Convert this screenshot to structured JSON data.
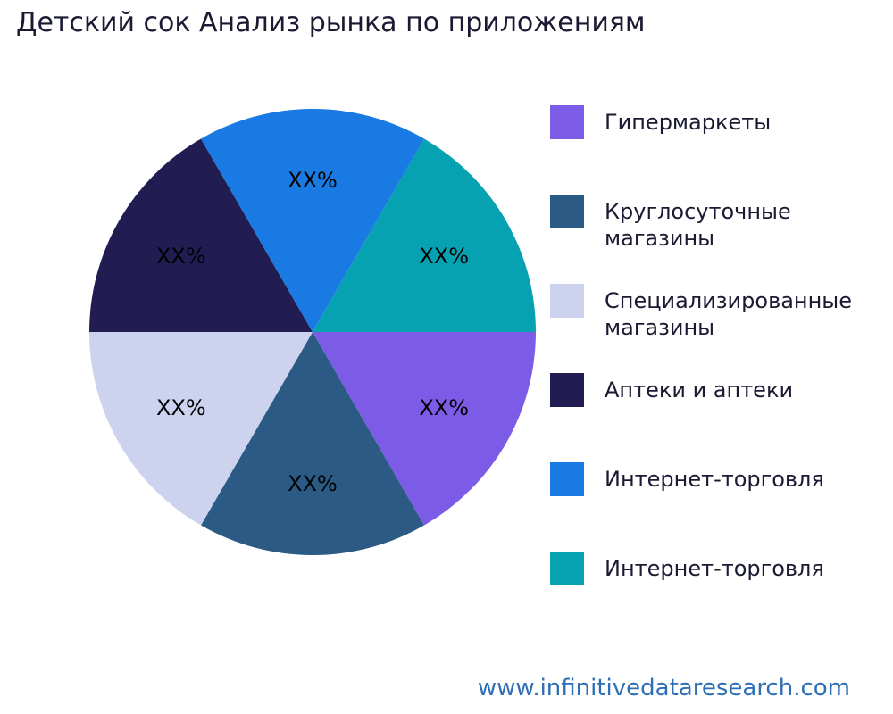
{
  "title": "Детский сок Анализ рынка по приложениям",
  "footer": {
    "url": "www.infinitivedataresearch.com"
  },
  "theme": {
    "background": "#ffffff",
    "title_color": "#1a1a33",
    "slice_label_color": "#000000",
    "footer_link_color": "#2d6eb5"
  },
  "chart_data": {
    "type": "pie",
    "title": "Детский сок Анализ рынка по приложениям",
    "categories": [
      "Гипермаркеты",
      "Круглосуточные магазины",
      "Специализированные магазины",
      "Аптеки и аптеки",
      "Интернет-торговля",
      "Интернет-торговля"
    ],
    "values": [
      16.67,
      16.67,
      16.67,
      16.67,
      16.67,
      16.67
    ],
    "data_labels": [
      "XX%",
      "XX%",
      "XX%",
      "XX%",
      "XX%",
      "XX%"
    ],
    "colors": [
      "#7c5ce6",
      "#2b5b85",
      "#cdd3ee",
      "#211d52",
      "#187ae2",
      "#07a2b2"
    ],
    "start_angle_deg": 0,
    "direction": "clockwise",
    "legend_position": "right",
    "values_note": "placeholder percentages shown as XX%"
  }
}
